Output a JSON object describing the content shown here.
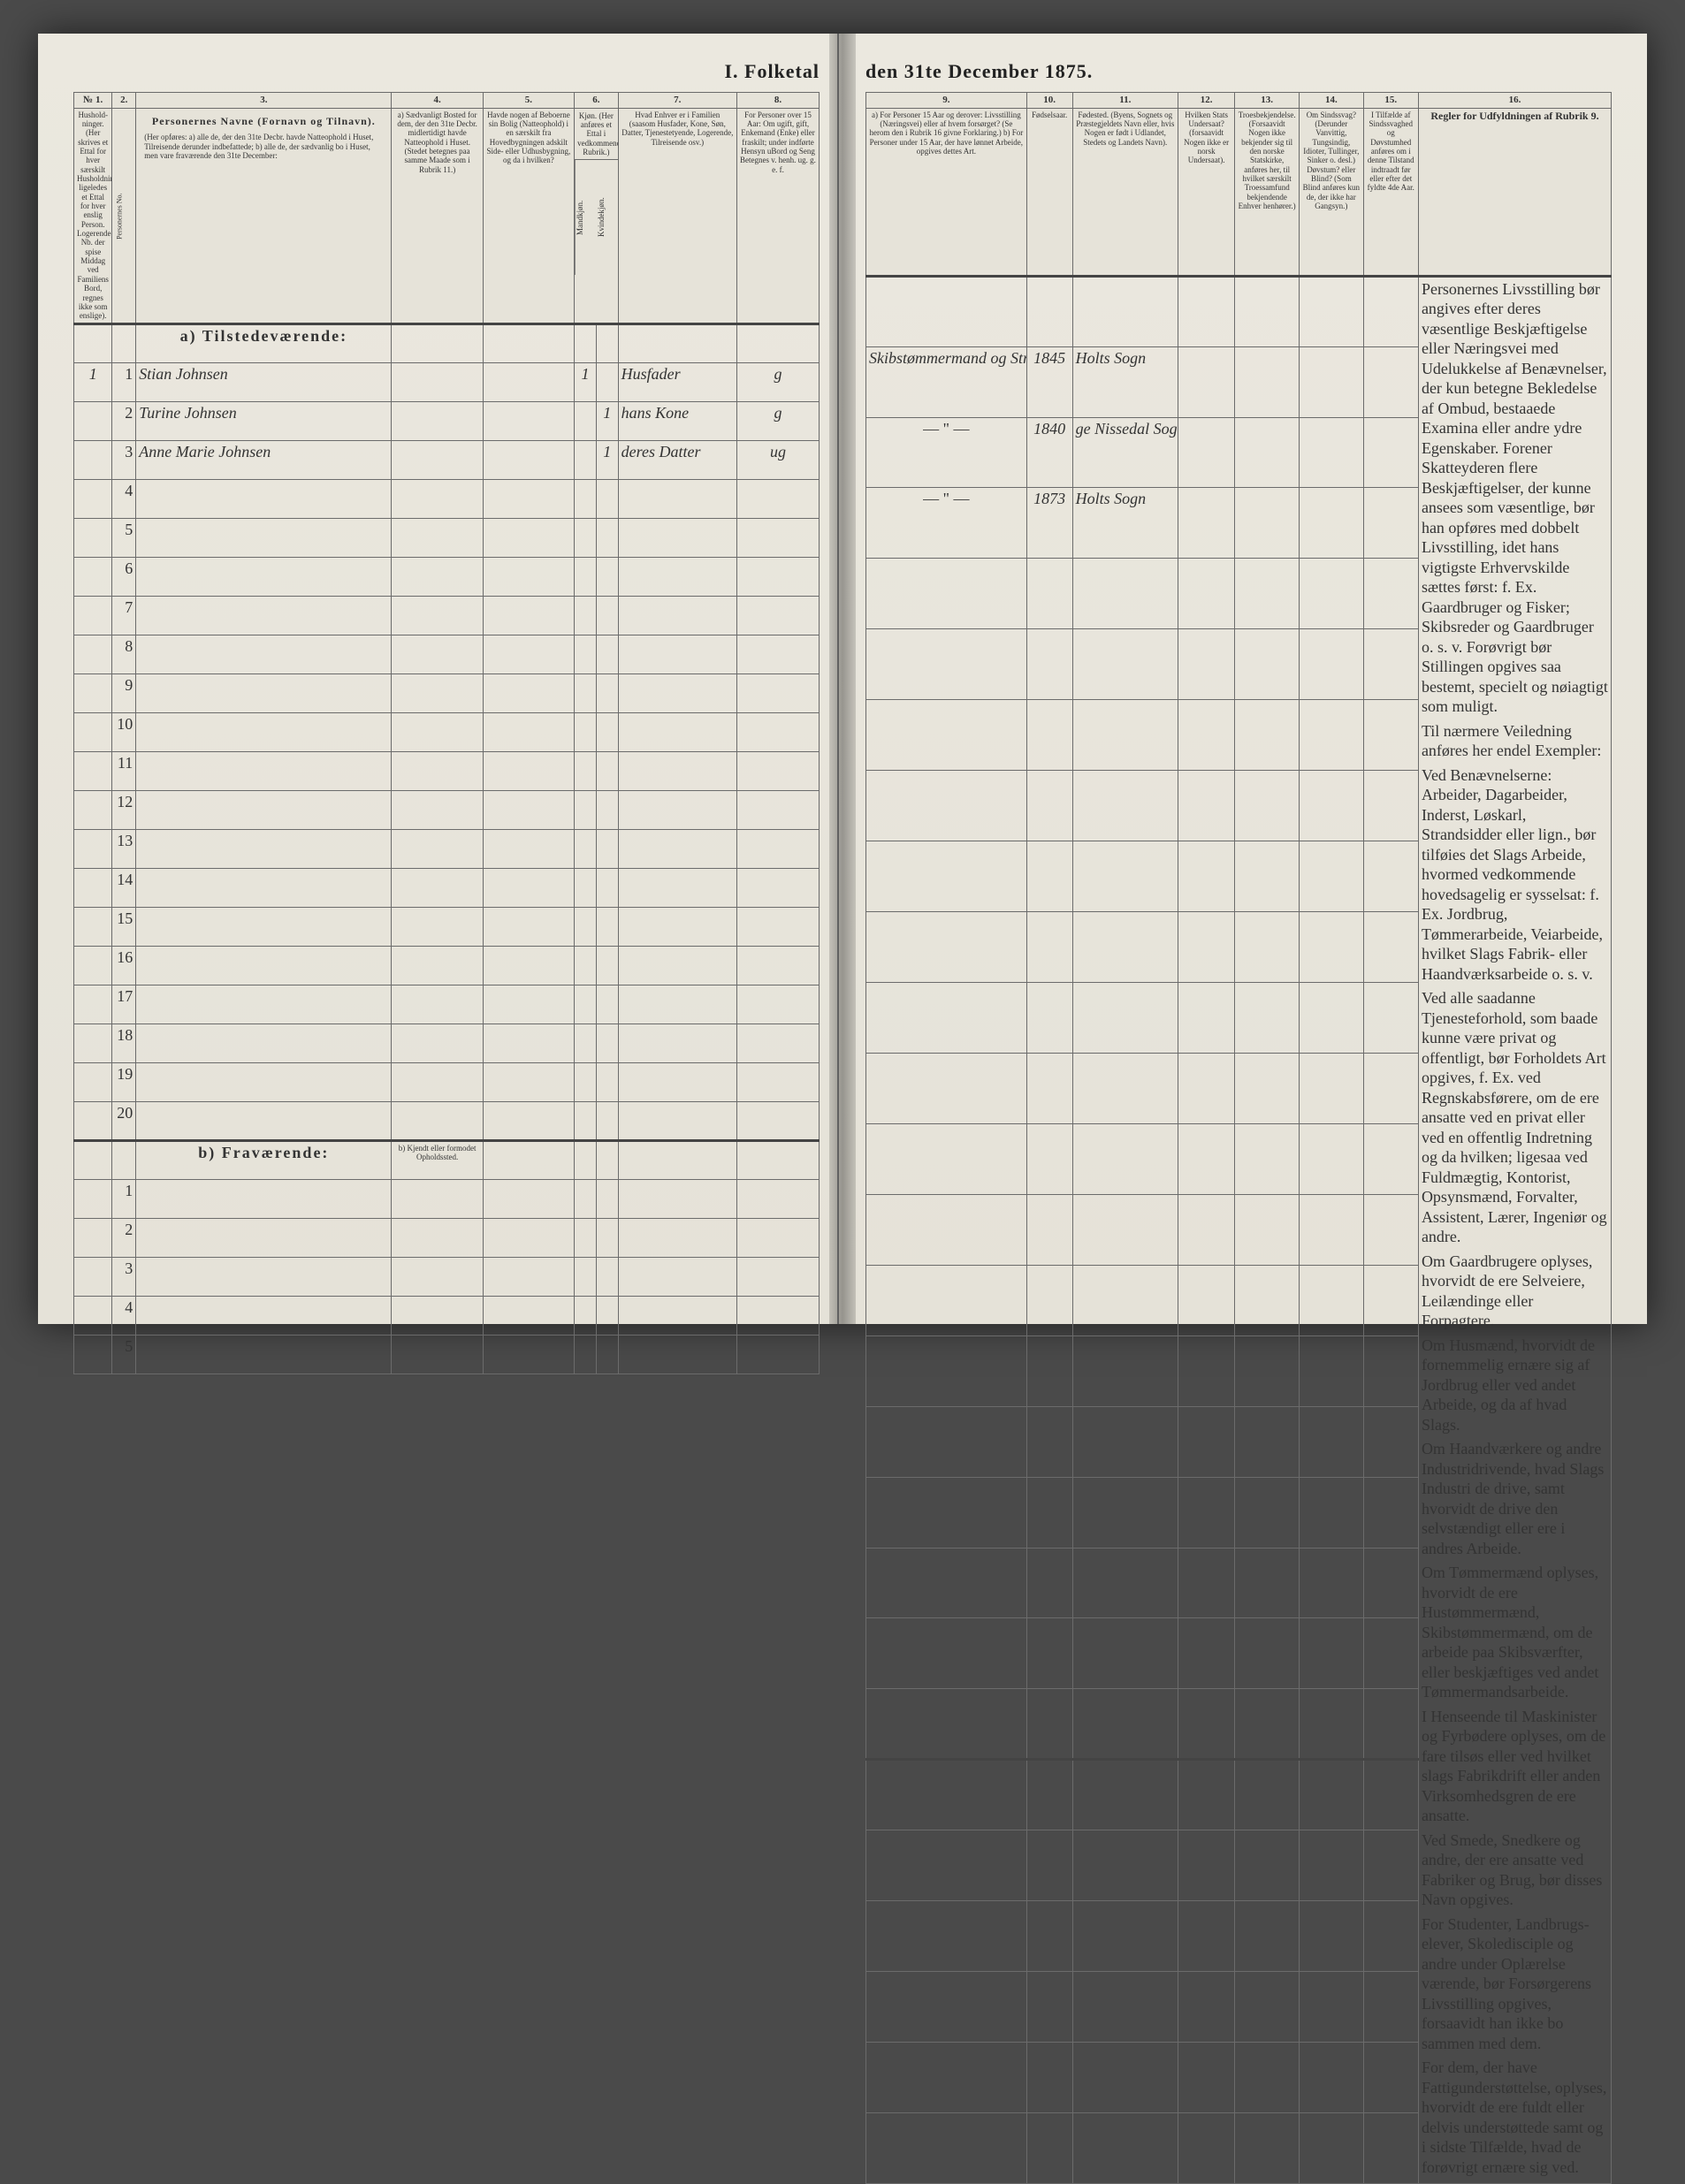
{
  "title_left": "I.  Folketal",
  "title_right": "den 31te December 1875.",
  "left_cols": {
    "c1": "№ 1.",
    "c2": "2.",
    "c3": "3.",
    "c4": "4.",
    "c5": "5.",
    "c6": "6.",
    "c7": "7.",
    "c8": "8."
  },
  "left_headers": {
    "h1": "Hushold-ninger. (Her skrives et Ettal for hver særskilt Husholdning; ligeledes et Ettal for hver enslig Person. Logerende, Nb. der spise Middag ved Familiens Bord, regnes ikke som enslige).",
    "h2": "Personernes No.",
    "h3_title": "Personernes Navne (Fornavn og Tilnavn).",
    "h3_sub": "(Her opføres: a) alle de, der den 31te Decbr. havde Natteophold i Huset, Tilreisende derunder indbefattede; b) alle de, der sædvanlig bo i Huset, men vare fraværende den 31te December:",
    "h4": "a) Sædvanligt Bosted for dem, der den 31te Decbr. midlertidigt havde Natteophold i Huset. (Stedet betegnes paa samme Maade som i Rubrik 11.)",
    "h5": "Havde nogen af Beboerne sin Bolig (Natteophold) i en særskilt fra Hovedbygningen adskilt Side- eller Udhusbygning, og da i hvilken?",
    "h6": "Kjøn. (Her anføres et Ettal i vedkommende Rubrik.)",
    "h6a": "Mandkjøn.",
    "h6b": "Kvindekjøn.",
    "h7": "Hvad Enhver er i Familien (saasom Husfader, Kone, Søn, Datter, Tjenestetyende, Logerende, Tilreisende osv.)",
    "h8": "For Personer over 15 Aar: Om ugift, gift, Enkemand (Enke) eller fraskilt; under indførte Hensyn uBord og Seng Betegnes v. henh. ug. g. e. f."
  },
  "right_cols": {
    "c9": "9.",
    "c10": "10.",
    "c11": "11.",
    "c12": "12.",
    "c13": "13.",
    "c14": "14.",
    "c15": "15.",
    "c16": "16."
  },
  "right_headers": {
    "h9": "a) For Personer 15 Aar og derover: Livsstilling (Næringsvei) eller af hvem forsørget? (Se herom den i Rubrik 16 givne Forklaring.) b) For Personer under 15 Aar, der have lønnet Arbeide, opgives dettes Art.",
    "h10": "Fødselsaar.",
    "h11": "Fødested. (Byens, Sognets og Præstegjeldets Navn eller, hvis Nogen er født i Udlandet, Stedets og Landets Navn).",
    "h12": "Hvilken Stats Undersaat? (forsaavidt Nogen ikke er norsk Undersaat).",
    "h13": "Troesbekjendelse. (Forsaavidt Nogen ikke bekjender sig til den norske Statskirke, anføres her, til hvilket særskilt Troessamfund bekjendende Enhver henhører.)",
    "h14": "Om Sindssvag? (Derunder Vanvittig, Tungsindig, Idioter, Tullinger, Sinker o. desl.) Døvstum? eller Blind? (Som Blind anføres kun de, der ikke har Gangsyn.)",
    "h15": "I Tilfælde af Sindssvaghed og Døvstumhed anføres om i denne Tilstand indtraadt før eller efter det fyldte 4de Aar.",
    "h16": "Regler for Udfyldningen af Rubrik 9."
  },
  "section_a": "a) Tilstedeværende:",
  "section_b": "b) Fraværende:",
  "section_b_col4": "b) Kjendt eller formodet Opholdssted.",
  "rows": [
    {
      "num": "1",
      "hh": "1",
      "name": "Stian Johnsen",
      "mk": "1",
      "kk": "",
      "rel": "Husfader",
      "civ": "g",
      "occ": "Skibstømmermand og Strand.",
      "yr": "1845",
      "bp": "Holts Sogn"
    },
    {
      "num": "2",
      "hh": "",
      "name": "Turine Johnsen",
      "mk": "",
      "kk": "1",
      "rel": "hans Kone",
      "civ": "g",
      "occ": "— \" —",
      "yr": "1840",
      "bp": "ge Nissedal Sogn"
    },
    {
      "num": "3",
      "hh": "",
      "name": "Anne Marie Johnsen",
      "mk": "",
      "kk": "1",
      "rel": "deres Datter",
      "civ": "ug",
      "occ": "— \" —",
      "yr": "1873",
      "bp": "Holts Sogn"
    }
  ],
  "rules_paragraphs": [
    "Personernes Livsstilling bør angives efter deres væsentlige Beskjæftigelse eller Næringsvei med Udelukkelse af Benævnelser, der kun betegne Bekledelse af Ombud, bestaaede Examina eller andre ydre Egenskaber. Forener Skatteyderen flere Beskjæftigelser, der kunne ansees som væsentlige, bør han opføres med dobbelt Livsstilling, idet hans vigtigste Erhvervskilde sættes først: f. Ex. Gaardbruger og Fisker; Skibsreder og Gaardbruger o. s. v. Forøvrigt bør Stillingen opgives saa bestemt, specielt og nøiagtigt som muligt.",
    "Til nærmere Veiledning anføres her endel Exempler:",
    "Ved Benævnelserne: Arbeider, Dagarbeider, Inderst, Løskarl, Strandsidder eller lign., bør tilføies det Slags Arbeide, hvormed vedkommende hovedsagelig er sysselsat: f. Ex. Jordbrug, Tømmerarbeide, Veiarbeide, hvilket Slags Fabrik- eller Haandværksarbeide o. s. v.",
    "Ved alle saadanne Tjenesteforhold, som baade kunne være privat og offentligt, bør Forholdets Art opgives, f. Ex. ved Regnskabsførere, om de ere ansatte ved en privat eller ved en offentlig Indretning og da hvilken; ligesaa ved Fuldmægtig, Kontorist, Opsynsmænd, Forvalter, Assistent, Lærer, Ingeniør og andre.",
    "Om Gaardbrugere oplyses, hvorvidt de ere Selveiere, Leilændinge eller Forpagtere.",
    "Om Husmænd, hvorvidt de fornemmelig ernære sig af Jordbrug eller ved andet Arbeide, og da af hvad Slags.",
    "Om Haandværkere og andre Industridrivende, hvad Slags Industri de drive, samt hvorvidt de drive den selvstændigt eller ere i andres Arbeide.",
    "Om Tømmermænd oplyses, hvorvidt de ere Hustømmermænd, Skibstømmermænd, om de arbeide paa Skibsværfter, eller beskjæftiges ved andet Tømmermandsarbeide.",
    "I Henseende til Maskinister og Fyrbødere oplyses, om de fare tilsøs eller ved hvilket slags Fabrikdrift eller anden Virksomhedsgren de ere ansatte.",
    "Ved Smede, Snedkere og andre, der ere ansatte ved Fabriker og Brug, bør disses Navn opgives.",
    "For Studenter, Landbrugs-elever, Skoledisciple og andre under Oplærelse værende, bør Forsørgerens Livsstilling opgives, forsaavidt han ikke bo sammen med dem.",
    "For dem, der have Fattigunderstøttelse, oplyses, hvorvidt de ere fuldt eller delvis understøttede samt og i sidste Tilfælde, hvad de forøvrigt ernære sig ved."
  ]
}
